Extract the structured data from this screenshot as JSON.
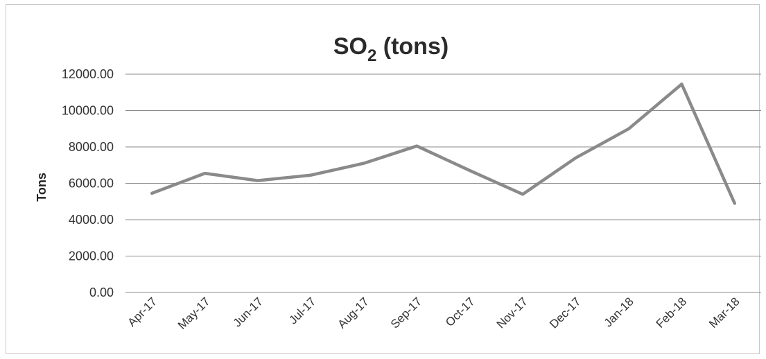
{
  "chart_data": {
    "type": "line",
    "title_main": "SO",
    "title_sub": "2",
    "title_rest": " (tons)",
    "ylabel": "Tons",
    "xlabel": "",
    "ylim": [
      0,
      12000
    ],
    "yticks": [
      "0.00",
      "2000.00",
      "4000.00",
      "6000.00",
      "8000.00",
      "10000.00",
      "12000.00"
    ],
    "ytick_values": [
      0,
      2000,
      4000,
      6000,
      8000,
      10000,
      12000
    ],
    "categories": [
      "Apr-17",
      "May-17",
      "Jun-17",
      "Jul-17",
      "Aug-17",
      "Sep-17",
      "Oct-17",
      "Nov-17",
      "Dec-17",
      "Jan-18",
      "Feb-18",
      "Mar-18"
    ],
    "series": [
      {
        "values": [
          5450,
          6550,
          6150,
          6450,
          7100,
          8050,
          6700,
          5400,
          7400,
          9000,
          11450,
          4900
        ],
        "color": "#8a8a8a"
      }
    ],
    "grid": true,
    "legend": "none"
  }
}
